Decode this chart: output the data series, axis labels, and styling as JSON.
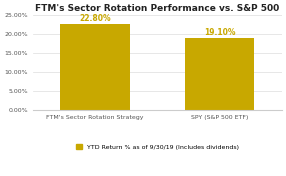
{
  "title": "FTM's Sector Rotation Performance vs. S&P 500",
  "categories": [
    "FTM's Sector Rotation Strategy",
    "SPY (S&P 500 ETF)"
  ],
  "values": [
    22.8,
    19.1
  ],
  "bar_labels": [
    "22.80%",
    "19.10%"
  ],
  "bar_color": "#C8A800",
  "ylim": [
    0,
    25
  ],
  "yticks": [
    0,
    5,
    10,
    15,
    20,
    25
  ],
  "ytick_labels": [
    "0.00%",
    "5.00%",
    "10.00%",
    "15.00%",
    "20.00%",
    "25.00%"
  ],
  "legend_label": "YTD Return % as of 9/30/19 (Includes dividends)",
  "background_color": "#ffffff",
  "title_fontsize": 6.5,
  "bar_label_fontsize": 5.5,
  "tick_fontsize": 4.5,
  "legend_fontsize": 4.5,
  "xlabel_fontsize": 4.5
}
